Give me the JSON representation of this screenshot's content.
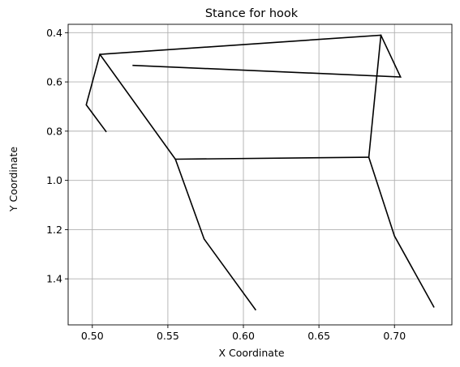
{
  "chart_data": {
    "type": "line",
    "title": "Stance for hook",
    "xlabel": "X Coordinate",
    "ylabel": "Y Coordinate",
    "xlim": [
      0.484,
      0.738
    ],
    "ylim": [
      1.587,
      0.366
    ],
    "y_inverted": true,
    "grid": true,
    "x_ticks": [
      0.5,
      0.55,
      0.6,
      0.65,
      0.7
    ],
    "x_tick_labels": [
      "0.50",
      "0.55",
      "0.60",
      "0.65",
      "0.70"
    ],
    "y_ticks": [
      0.4,
      0.6,
      0.8,
      1.0,
      1.2,
      1.4
    ],
    "y_tick_labels": [
      "0.4",
      "0.6",
      "0.8",
      "1.0",
      "1.2",
      "1.4"
    ],
    "line_color": "#000000",
    "series": [
      {
        "x": [
          0.509,
          0.496,
          0.505,
          0.691,
          0.704,
          0.527
        ],
        "y": [
          0.801,
          0.693,
          0.488,
          0.41,
          0.58,
          0.533
        ]
      },
      {
        "x": [
          0.505,
          0.555,
          0.574,
          0.608
        ],
        "y": [
          0.488,
          0.914,
          1.238,
          1.525
        ]
      },
      {
        "x": [
          0.555,
          0.683
        ],
        "y": [
          0.914,
          0.906
        ]
      },
      {
        "x": [
          0.691,
          0.683,
          0.7,
          0.726
        ],
        "y": [
          0.41,
          0.906,
          1.226,
          1.514
        ]
      }
    ]
  }
}
